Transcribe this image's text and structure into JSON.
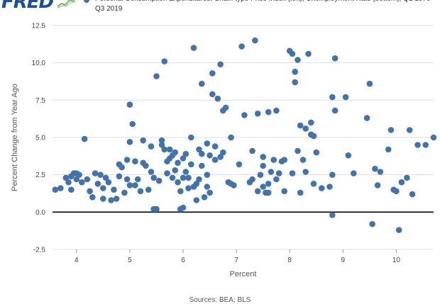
{
  "header": {
    "logo_text": "FRED",
    "legend_label": "Personal Consumption Expenditures: Chain-type Price Index (left), Unemployment Rate (bottom), Q1 1970 Q3 2019"
  },
  "source_text": "Sources: BEA; BLS",
  "colors": {
    "point": "#4572a7",
    "grid": "#dddddd",
    "zero_line": "#000000",
    "logo": "#1d4f91"
  },
  "chart_data": {
    "type": "scatter",
    "title": "",
    "xlabel": "Percent",
    "ylabel": "Percent Change from Year Ago",
    "xlim": [
      3.55,
      10.7
    ],
    "ylim": [
      -2.5,
      12.5
    ],
    "xticks": [
      4,
      5,
      6,
      7,
      8,
      9,
      10
    ],
    "yticks": [
      -2.5,
      0.0,
      2.5,
      5.0,
      7.5,
      10.0,
      12.5
    ],
    "ytick_labels": [
      "-2.5",
      "0.0",
      "2.5",
      "5.0",
      "7.5",
      "10.0",
      "12.5"
    ],
    "grid": "horizontal",
    "zero_line": true,
    "series": [
      {
        "name": "Personal Consumption Expenditures: Chain-type Price Index (left), Unemployment Rate (bottom), Q1 1970 Q3 2019",
        "points": [
          [
            3.6,
            1.5
          ],
          [
            3.7,
            1.6
          ],
          [
            3.8,
            2.3
          ],
          [
            3.85,
            2.0
          ],
          [
            3.9,
            1.5
          ],
          [
            3.9,
            2.4
          ],
          [
            3.95,
            2.6
          ],
          [
            4.0,
            2.2
          ],
          [
            4.0,
            2.6
          ],
          [
            4.05,
            2.5
          ],
          [
            4.1,
            2.0
          ],
          [
            4.2,
            2.2
          ],
          [
            4.15,
            4.9
          ],
          [
            4.25,
            1.4
          ],
          [
            4.3,
            1.0
          ],
          [
            4.35,
            2.6
          ],
          [
            4.4,
            1.9
          ],
          [
            4.45,
            2.5
          ],
          [
            4.5,
            1.6
          ],
          [
            4.5,
            0.9
          ],
          [
            4.55,
            2.3
          ],
          [
            4.6,
            2.0
          ],
          [
            4.65,
            0.8
          ],
          [
            4.7,
            1.5
          ],
          [
            4.75,
            0.9
          ],
          [
            4.8,
            2.4
          ],
          [
            4.8,
            3.2
          ],
          [
            4.85,
            3.0
          ],
          [
            4.9,
            1.3
          ],
          [
            4.95,
            2.2
          ],
          [
            5.0,
            1.8
          ],
          [
            4.95,
            3.5
          ],
          [
            5.0,
            4.7
          ],
          [
            5.0,
            7.2
          ],
          [
            5.05,
            5.9
          ],
          [
            5.1,
            1.8
          ],
          [
            5.1,
            3.4
          ],
          [
            5.15,
            2.2
          ],
          [
            5.2,
            1.4
          ],
          [
            5.25,
            3.3
          ],
          [
            5.25,
            4.8
          ],
          [
            5.3,
            3.1
          ],
          [
            5.35,
            1.5
          ],
          [
            5.4,
            2.7
          ],
          [
            5.4,
            4.4
          ],
          [
            5.45,
            0.2
          ],
          [
            5.5,
            0.2
          ],
          [
            5.45,
            2.3
          ],
          [
            5.5,
            9.1
          ],
          [
            5.55,
            2.1
          ],
          [
            5.6,
            4.5
          ],
          [
            5.6,
            4.8
          ],
          [
            5.65,
            4.2
          ],
          [
            5.65,
            10.1
          ],
          [
            5.7,
            2.6
          ],
          [
            5.7,
            3.4
          ],
          [
            5.75,
            4.2
          ],
          [
            5.75,
            3.6
          ],
          [
            5.8,
            2.3
          ],
          [
            5.8,
            3.8
          ],
          [
            5.85,
            2.8
          ],
          [
            5.85,
            4.0
          ],
          [
            5.9,
            2.0
          ],
          [
            5.9,
            3.3
          ],
          [
            5.95,
            0.2
          ],
          [
            5.95,
            1.4
          ],
          [
            6.0,
            0.3
          ],
          [
            6.0,
            2.3
          ],
          [
            6.0,
            3.6
          ],
          [
            6.05,
            2.7
          ],
          [
            6.05,
            3.9
          ],
          [
            6.1,
            1.6
          ],
          [
            6.1,
            2.3
          ],
          [
            6.15,
            3.2
          ],
          [
            6.15,
            5.0
          ],
          [
            6.2,
            1.7
          ],
          [
            6.2,
            11.0
          ],
          [
            6.25,
            0.8
          ],
          [
            6.25,
            1.9
          ],
          [
            6.3,
            2.2
          ],
          [
            6.3,
            4.2
          ],
          [
            6.35,
            3.1
          ],
          [
            6.35,
            8.6
          ],
          [
            6.35,
            3.9
          ],
          [
            6.4,
            1.0
          ],
          [
            6.45,
            1.7
          ],
          [
            6.45,
            2.5
          ],
          [
            6.45,
            4.6
          ],
          [
            6.5,
            1.3
          ],
          [
            6.5,
            3.8
          ],
          [
            6.55,
            9.3
          ],
          [
            6.55,
            7.9
          ],
          [
            6.6,
            4.4
          ],
          [
            6.6,
            3.5
          ],
          [
            6.65,
            7.6
          ],
          [
            6.7,
            9.9
          ],
          [
            6.7,
            3.7
          ],
          [
            6.75,
            6.8
          ],
          [
            6.75,
            4.0
          ],
          [
            6.8,
            7.0
          ],
          [
            6.85,
            2.0
          ],
          [
            6.9,
            5.0
          ],
          [
            6.9,
            1.9
          ],
          [
            6.95,
            1.8
          ],
          [
            7.05,
            3.2
          ],
          [
            7.1,
            11.1
          ],
          [
            7.15,
            6.5
          ],
          [
            7.25,
            2.0
          ],
          [
            7.3,
            4.1
          ],
          [
            7.3,
            2.2
          ],
          [
            7.35,
            11.5
          ],
          [
            7.4,
            1.4
          ],
          [
            7.4,
            6.6
          ],
          [
            7.45,
            2.5
          ],
          [
            7.5,
            3.7
          ],
          [
            7.5,
            1.7
          ],
          [
            7.5,
            3.1
          ],
          [
            7.55,
            1.3
          ],
          [
            7.6,
            1.3
          ],
          [
            7.6,
            6.7
          ],
          [
            7.6,
            1.9
          ],
          [
            7.65,
            2.7
          ],
          [
            7.7,
            3.5
          ],
          [
            7.75,
            2.2
          ],
          [
            7.75,
            6.8
          ],
          [
            7.8,
            2.6
          ],
          [
            7.85,
            3.4
          ],
          [
            7.9,
            1.4
          ],
          [
            7.9,
            3.5
          ],
          [
            8.0,
            10.8
          ],
          [
            8.05,
            10.6
          ],
          [
            8.1,
            9.4
          ],
          [
            8.1,
            8.7
          ],
          [
            8.15,
            10.2
          ],
          [
            8.05,
            2.6
          ],
          [
            8.15,
            4.1
          ],
          [
            8.2,
            5.8
          ],
          [
            8.2,
            1.3
          ],
          [
            8.25,
            3.5
          ],
          [
            8.3,
            5.6
          ],
          [
            8.3,
            2.7
          ],
          [
            8.35,
            10.6
          ],
          [
            8.4,
            6.0
          ],
          [
            8.4,
            5.2
          ],
          [
            8.45,
            5.1
          ],
          [
            8.45,
            1.9
          ],
          [
            8.5,
            4.0
          ],
          [
            8.6,
            1.6
          ],
          [
            8.75,
            1.7
          ],
          [
            8.8,
            -0.2
          ],
          [
            8.8,
            7.7
          ],
          [
            8.8,
            2.5
          ],
          [
            8.85,
            10.3
          ],
          [
            8.85,
            6.8
          ],
          [
            9.05,
            7.7
          ],
          [
            9.1,
            3.8
          ],
          [
            9.2,
            2.6
          ],
          [
            9.45,
            6.3
          ],
          [
            9.5,
            8.6
          ],
          [
            9.55,
            -0.8
          ],
          [
            9.6,
            2.9
          ],
          [
            9.65,
            1.8
          ],
          [
            9.7,
            2.7
          ],
          [
            9.85,
            4.2
          ],
          [
            9.9,
            5.5
          ],
          [
            9.95,
            1.5
          ],
          [
            10.0,
            1.4
          ],
          [
            10.05,
            -1.2
          ],
          [
            10.1,
            2.0
          ],
          [
            10.2,
            2.3
          ],
          [
            10.25,
            5.5
          ],
          [
            10.3,
            1.2
          ],
          [
            10.4,
            4.5
          ],
          [
            10.55,
            4.5
          ],
          [
            10.7,
            5.0
          ]
        ]
      }
    ]
  }
}
